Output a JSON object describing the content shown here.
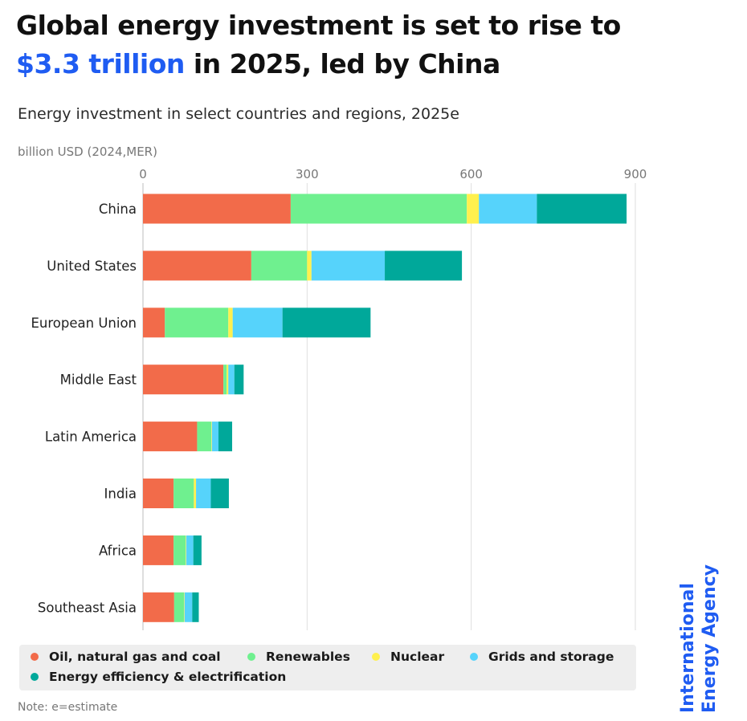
{
  "header": {
    "title_line1": "Global energy investment is set to rise to",
    "title_highlight": "$3.3 trillion",
    "title_rest": " in 2025, led by China"
  },
  "subtitle": "Energy investment in select countries and regions, 2025e",
  "unit_label": "billion USD (2024,MER)",
  "note": "Note: e=estimate",
  "brand": {
    "line1": "International",
    "line2": "Energy Agency"
  },
  "legend": [
    {
      "label": "Oil, natural gas and coal",
      "color": "#f26b4a"
    },
    {
      "label": "Renewables",
      "color": "#6ff08f"
    },
    {
      "label": "Nuclear",
      "color": "#fff04e"
    },
    {
      "label": "Grids and storage",
      "color": "#56d3fb"
    },
    {
      "label": "Energy efficiency & electrification",
      "color": "#00a89a"
    }
  ],
  "chart_data": {
    "type": "bar",
    "orientation": "horizontal",
    "stacked": true,
    "title": "Energy investment in select countries and regions, 2025e",
    "xlabel": "billion USD (2024,MER)",
    "ylabel": "",
    "xlim": [
      0,
      900
    ],
    "xticks": [
      0,
      300,
      600,
      900
    ],
    "grid": true,
    "legend_position": "bottom",
    "categories": [
      "China",
      "United States",
      "European Union",
      "Middle East",
      "Latin America",
      "India",
      "Africa",
      "Southeast Asia"
    ],
    "series": [
      {
        "name": "Oil, natural gas and coal",
        "color": "#f26b4a",
        "values": [
          270,
          198,
          40,
          147,
          99,
          56,
          56,
          57
        ]
      },
      {
        "name": "Renewables",
        "color": "#6ff08f",
        "values": [
          322,
          102,
          116,
          6,
          26,
          37,
          22,
          18
        ]
      },
      {
        "name": "Nuclear",
        "color": "#fff04e",
        "values": [
          22,
          8,
          8,
          3,
          1,
          4,
          1,
          1
        ]
      },
      {
        "name": "Grids and storage",
        "color": "#56d3fb",
        "values": [
          106,
          134,
          91,
          11,
          12,
          27,
          13,
          14
        ]
      },
      {
        "name": "Energy efficiency & electrification",
        "color": "#00a89a",
        "values": [
          164,
          141,
          161,
          17,
          25,
          33,
          15,
          12
        ]
      }
    ]
  }
}
